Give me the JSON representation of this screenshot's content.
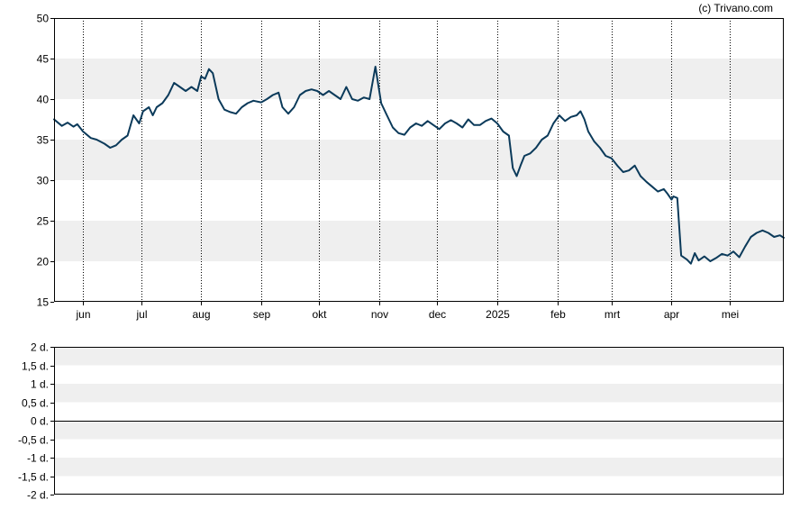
{
  "credit": "(c) Trivano.com",
  "colors": {
    "line": "#0b3a5a",
    "band": "#efefef",
    "grid": "#000000",
    "frame": "#000000"
  },
  "chart_data": [
    {
      "type": "line",
      "title": "",
      "xlabel": "",
      "ylabel": "",
      "ylim": [
        15,
        50
      ],
      "yticks": [
        15,
        20,
        25,
        30,
        35,
        40,
        45,
        50
      ],
      "grid": true,
      "month_labels": [
        {
          "label": "jun",
          "date": "2024-06-01"
        },
        {
          "label": "jul",
          "date": "2024-07-01"
        },
        {
          "label": "aug",
          "date": "2024-08-01"
        },
        {
          "label": "sep",
          "date": "2024-09-01"
        },
        {
          "label": "okt",
          "date": "2024-10-01"
        },
        {
          "label": "nov",
          "date": "2024-11-01"
        },
        {
          "label": "dec",
          "date": "2024-12-01"
        },
        {
          "label": "2025",
          "date": "2025-01-01"
        },
        {
          "label": "feb",
          "date": "2025-02-01"
        },
        {
          "label": "mrt",
          "date": "2025-03-01"
        },
        {
          "label": "apr",
          "date": "2025-04-01"
        },
        {
          "label": "mei",
          "date": "2025-05-01"
        }
      ],
      "x_range": [
        "2024-05-17",
        "2025-05-29"
      ],
      "series": [
        {
          "values": [
            [
              "2024-05-17",
              37.5
            ],
            [
              "2024-05-21",
              36.7
            ],
            [
              "2024-05-24",
              37.1
            ],
            [
              "2024-05-27",
              36.6
            ],
            [
              "2024-05-29",
              36.9
            ],
            [
              "2024-06-01",
              36.0
            ],
            [
              "2024-06-05",
              35.2
            ],
            [
              "2024-06-08",
              35.0
            ],
            [
              "2024-06-12",
              34.5
            ],
            [
              "2024-06-15",
              34.0
            ],
            [
              "2024-06-18",
              34.3
            ],
            [
              "2024-06-21",
              35.0
            ],
            [
              "2024-06-24",
              35.5
            ],
            [
              "2024-06-27",
              38.0
            ],
            [
              "2024-06-30",
              37.0
            ],
            [
              "2024-07-02",
              38.5
            ],
            [
              "2024-07-05",
              39.0
            ],
            [
              "2024-07-07",
              38.0
            ],
            [
              "2024-07-09",
              39.0
            ],
            [
              "2024-07-12",
              39.5
            ],
            [
              "2024-07-15",
              40.5
            ],
            [
              "2024-07-18",
              42.0
            ],
            [
              "2024-07-21",
              41.5
            ],
            [
              "2024-07-24",
              41.0
            ],
            [
              "2024-07-27",
              41.5
            ],
            [
              "2024-07-30",
              41.0
            ],
            [
              "2024-08-01",
              42.8
            ],
            [
              "2024-08-03",
              42.5
            ],
            [
              "2024-08-05",
              43.7
            ],
            [
              "2024-08-07",
              43.2
            ],
            [
              "2024-08-10",
              40.0
            ],
            [
              "2024-08-13",
              38.7
            ],
            [
              "2024-08-16",
              38.4
            ],
            [
              "2024-08-19",
              38.2
            ],
            [
              "2024-08-22",
              39.0
            ],
            [
              "2024-08-25",
              39.5
            ],
            [
              "2024-08-28",
              39.8
            ],
            [
              "2024-09-01",
              39.6
            ],
            [
              "2024-09-04",
              40.0
            ],
            [
              "2024-09-07",
              40.5
            ],
            [
              "2024-09-10",
              40.8
            ],
            [
              "2024-09-12",
              39.0
            ],
            [
              "2024-09-15",
              38.2
            ],
            [
              "2024-09-18",
              39.0
            ],
            [
              "2024-09-21",
              40.5
            ],
            [
              "2024-09-24",
              41.0
            ],
            [
              "2024-09-27",
              41.2
            ],
            [
              "2024-09-30",
              41.0
            ],
            [
              "2024-10-03",
              40.5
            ],
            [
              "2024-10-06",
              41.0
            ],
            [
              "2024-10-09",
              40.5
            ],
            [
              "2024-10-12",
              40.0
            ],
            [
              "2024-10-15",
              41.5
            ],
            [
              "2024-10-18",
              40.0
            ],
            [
              "2024-10-21",
              39.8
            ],
            [
              "2024-10-24",
              40.2
            ],
            [
              "2024-10-27",
              40.0
            ],
            [
              "2024-10-30",
              44.0
            ],
            [
              "2024-11-02",
              39.5
            ],
            [
              "2024-11-05",
              38.0
            ],
            [
              "2024-11-08",
              36.5
            ],
            [
              "2024-11-11",
              35.8
            ],
            [
              "2024-11-14",
              35.6
            ],
            [
              "2024-11-17",
              36.5
            ],
            [
              "2024-11-20",
              37.0
            ],
            [
              "2024-11-23",
              36.7
            ],
            [
              "2024-11-26",
              37.3
            ],
            [
              "2024-11-29",
              36.8
            ],
            [
              "2024-12-02",
              36.3
            ],
            [
              "2024-12-05",
              37.0
            ],
            [
              "2024-12-08",
              37.4
            ],
            [
              "2024-12-11",
              37.0
            ],
            [
              "2024-12-14",
              36.5
            ],
            [
              "2024-12-17",
              37.5
            ],
            [
              "2024-12-20",
              36.8
            ],
            [
              "2024-12-23",
              36.8
            ],
            [
              "2024-12-26",
              37.3
            ],
            [
              "2024-12-29",
              37.6
            ],
            [
              "2025-01-01",
              37.0
            ],
            [
              "2025-01-04",
              36.0
            ],
            [
              "2025-01-07",
              35.5
            ],
            [
              "2025-01-09",
              31.5
            ],
            [
              "2025-01-11",
              30.5
            ],
            [
              "2025-01-13",
              31.8
            ],
            [
              "2025-01-15",
              33.0
            ],
            [
              "2025-01-18",
              33.3
            ],
            [
              "2025-01-21",
              34.0
            ],
            [
              "2025-01-24",
              35.0
            ],
            [
              "2025-01-27",
              35.5
            ],
            [
              "2025-01-30",
              37.0
            ],
            [
              "2025-02-02",
              38.0
            ],
            [
              "2025-02-05",
              37.3
            ],
            [
              "2025-02-08",
              37.8
            ],
            [
              "2025-02-11",
              38.0
            ],
            [
              "2025-02-13",
              38.5
            ],
            [
              "2025-02-15",
              37.5
            ],
            [
              "2025-02-17",
              36.0
            ],
            [
              "2025-02-20",
              34.8
            ],
            [
              "2025-02-23",
              34.0
            ],
            [
              "2025-02-26",
              33.0
            ],
            [
              "2025-03-01",
              32.7
            ],
            [
              "2025-03-04",
              31.8
            ],
            [
              "2025-03-07",
              31.0
            ],
            [
              "2025-03-10",
              31.2
            ],
            [
              "2025-03-13",
              31.8
            ],
            [
              "2025-03-16",
              30.5
            ],
            [
              "2025-03-19",
              29.8
            ],
            [
              "2025-03-22",
              29.2
            ],
            [
              "2025-03-25",
              28.6
            ],
            [
              "2025-03-28",
              28.9
            ],
            [
              "2025-03-30",
              28.3
            ],
            [
              "2025-04-01",
              27.6
            ],
            [
              "2025-04-02",
              28.0
            ],
            [
              "2025-04-04",
              27.8
            ],
            [
              "2025-04-06",
              20.7
            ],
            [
              "2025-04-09",
              20.2
            ],
            [
              "2025-04-11",
              19.7
            ],
            [
              "2025-04-13",
              21.0
            ],
            [
              "2025-04-15",
              20.1
            ],
            [
              "2025-04-18",
              20.6
            ],
            [
              "2025-04-21",
              20.0
            ],
            [
              "2025-04-24",
              20.4
            ],
            [
              "2025-04-27",
              20.9
            ],
            [
              "2025-04-30",
              20.7
            ],
            [
              "2025-05-03",
              21.2
            ],
            [
              "2025-05-06",
              20.5
            ],
            [
              "2025-05-09",
              21.8
            ],
            [
              "2025-05-12",
              23.0
            ],
            [
              "2025-05-15",
              23.5
            ],
            [
              "2025-05-18",
              23.8
            ],
            [
              "2025-05-21",
              23.5
            ],
            [
              "2025-05-24",
              23.0
            ],
            [
              "2025-05-27",
              23.2
            ],
            [
              "2025-05-29",
              22.9
            ]
          ]
        }
      ]
    },
    {
      "type": "line",
      "title": "",
      "xlabel": "",
      "ylabel": "",
      "ylim": [
        -2,
        2
      ],
      "yticks": [
        {
          "value": 2,
          "label": "2 d."
        },
        {
          "value": 1.5,
          "label": "1,5 d."
        },
        {
          "value": 1,
          "label": "1 d."
        },
        {
          "value": 0.5,
          "label": "0,5 d."
        },
        {
          "value": 0,
          "label": "0 d."
        },
        {
          "value": -0.5,
          "label": "-0,5 d."
        },
        {
          "value": -1,
          "label": "-1 d."
        },
        {
          "value": -1.5,
          "label": "-1,5 d."
        },
        {
          "value": -2,
          "label": "-2 d."
        }
      ],
      "zero_line": 0,
      "series": []
    }
  ]
}
